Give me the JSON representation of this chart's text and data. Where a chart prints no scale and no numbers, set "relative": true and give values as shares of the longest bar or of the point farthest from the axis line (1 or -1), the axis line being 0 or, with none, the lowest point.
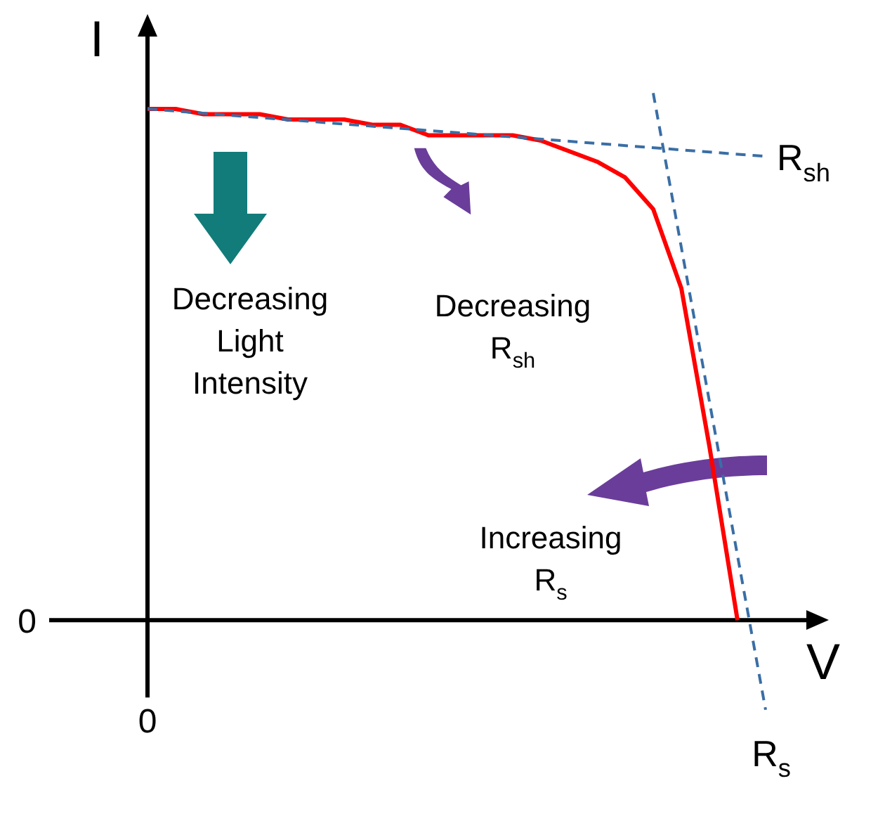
{
  "chart_data": {
    "type": "line",
    "relative": true,
    "xlabel": "V",
    "ylabel": "I",
    "legend": false,
    "grid": false,
    "marker": "none",
    "categories": [
      null,
      null,
      null,
      null,
      null,
      null,
      null,
      null,
      null,
      null,
      null,
      null,
      null,
      null,
      null,
      null,
      null,
      null,
      null,
      null,
      null,
      null,
      null
    ],
    "series": [
      {
        "color": "#ff0000",
        "values": [
          0.97,
          0.97,
          0.96,
          0.96,
          0.96,
          0.95,
          0.95,
          0.95,
          0.94,
          0.94,
          0.92,
          0.92,
          0.92,
          0.92,
          0.91,
          0.89,
          0.87,
          0.84,
          0.78,
          0.63,
          0.33,
          0,
          null
        ]
      },
      {
        "name": "R$_{sh}$",
        "color": "#3a6ea5",
        "line_style": "dashed",
        "values": [
          0.97,
          null,
          null,
          null,
          null,
          null,
          null,
          null,
          null,
          null,
          null,
          null,
          null,
          null,
          null,
          null,
          null,
          null,
          null,
          null,
          null,
          null,
          0.88
        ]
      },
      {
        "name": "R$_{s}$",
        "color": "#3a6ea5",
        "line_style": "dashed",
        "values": [
          null,
          null,
          null,
          null,
          null,
          null,
          null,
          null,
          null,
          null,
          null,
          null,
          null,
          null,
          null,
          null,
          null,
          null,
          1,
          null,
          null,
          null,
          -0.17
        ]
      }
    ],
    "annotations": [
      "Decreasing Light Intensity",
      "Decreasing R$_{sh}$",
      "Increasing R$_{s}$",
      "0",
      "0"
    ]
  }
}
